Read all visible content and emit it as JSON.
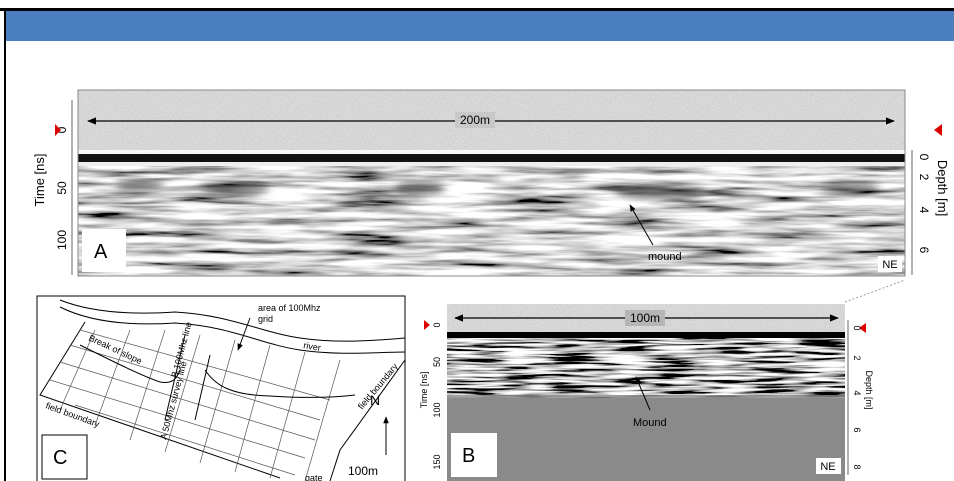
{
  "panel_a": {
    "label": "A",
    "scale": "200m",
    "time_axis": "Time [ns]",
    "time_ticks": [
      "0",
      "50",
      "100"
    ],
    "depth_axis": "Depth [m]",
    "depth_ticks": [
      "0",
      "2",
      "4",
      "6"
    ],
    "annotation": "mound",
    "direction": "NE"
  },
  "panel_b": {
    "label": "B",
    "scale": "100m",
    "time_axis": "Time [ns]",
    "time_ticks": [
      "0",
      "50",
      "100",
      "150"
    ],
    "depth_axis": "Depth [m]",
    "depth_ticks": [
      "0",
      "2",
      "4",
      "6",
      "8"
    ],
    "annotation": "Mound",
    "direction": "NE"
  },
  "panel_c": {
    "label": "C",
    "grid_area": [
      "area of 100Mhz",
      "grid"
    ],
    "river": "river",
    "slope": "Break of slope",
    "line_b": "B 100Mhz line",
    "line_a": "A 50Mhz survey line",
    "boundary_left": "field boundary",
    "boundary_right": "field boundary",
    "north": "N",
    "scale": "100m",
    "gate": "gate"
  }
}
